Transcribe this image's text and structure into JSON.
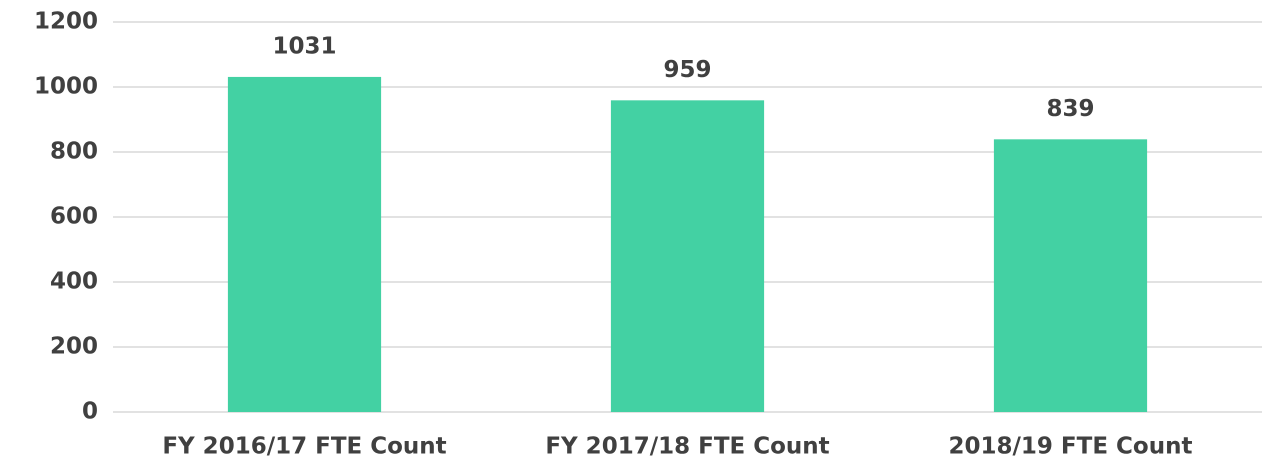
{
  "chart_data": {
    "type": "bar",
    "categories": [
      "FY 2016/17 FTE Count",
      "FY 2017/18 FTE Count",
      "2018/19 FTE Count"
    ],
    "values": [
      1031,
      959,
      839
    ],
    "color": "#43d1a3",
    "ylim": [
      0,
      1200
    ],
    "yticks": [
      0,
      200,
      400,
      600,
      800,
      1000,
      1200
    ],
    "grid": true
  }
}
